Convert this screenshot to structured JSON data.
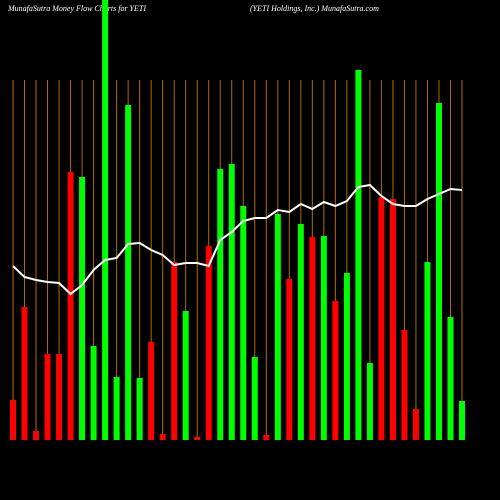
{
  "chart_data": {
    "type": "bar",
    "title": "MunafaSutra  Money Flow  Charts for YETI",
    "subtitle": "(YETI Holdings,  Inc.) MunafaSutra.com",
    "ylim": [
      0,
      440
    ],
    "grid": true,
    "grid_color": "#b36b00",
    "values": [
      40,
      133,
      9,
      86,
      86,
      268,
      263,
      94,
      440,
      63,
      335,
      62,
      98,
      6,
      178,
      129,
      3,
      194,
      271,
      276,
      234,
      83,
      5,
      226,
      161,
      216,
      203,
      204,
      139,
      167,
      370,
      77,
      243,
      241,
      110,
      31,
      178,
      337,
      123,
      39
    ],
    "colors": [
      "#ff0000",
      "#ff0000",
      "#ff0000",
      "#ff0000",
      "#ff0000",
      "#ff0000",
      "#00ff00",
      "#00ff00",
      "#00ff00",
      "#00ff00",
      "#00ff00",
      "#00ff00",
      "#ff0000",
      "#ff0000",
      "#ff0000",
      "#00ff00",
      "#ff0000",
      "#ff0000",
      "#00ff00",
      "#00ff00",
      "#00ff00",
      "#00ff00",
      "#ff0000",
      "#00ff00",
      "#ff0000",
      "#00ff00",
      "#ff0000",
      "#00ff00",
      "#ff0000",
      "#00ff00",
      "#00ff00",
      "#00ff00",
      "#ff0000",
      "#ff0000",
      "#ff0000",
      "#ff0000",
      "#00ff00",
      "#00ff00",
      "#00ff00",
      "#00ff00"
    ],
    "line": {
      "color": "#ffffff",
      "values": [
        174,
        163,
        160,
        158,
        157,
        146,
        155,
        170,
        180,
        182,
        196,
        197,
        190,
        185,
        175,
        177,
        177,
        174,
        200,
        208,
        219,
        222,
        222,
        230,
        228,
        236,
        231,
        238,
        234,
        239,
        253,
        255,
        244,
        236,
        234,
        234,
        241,
        246,
        251,
        250
      ]
    }
  }
}
